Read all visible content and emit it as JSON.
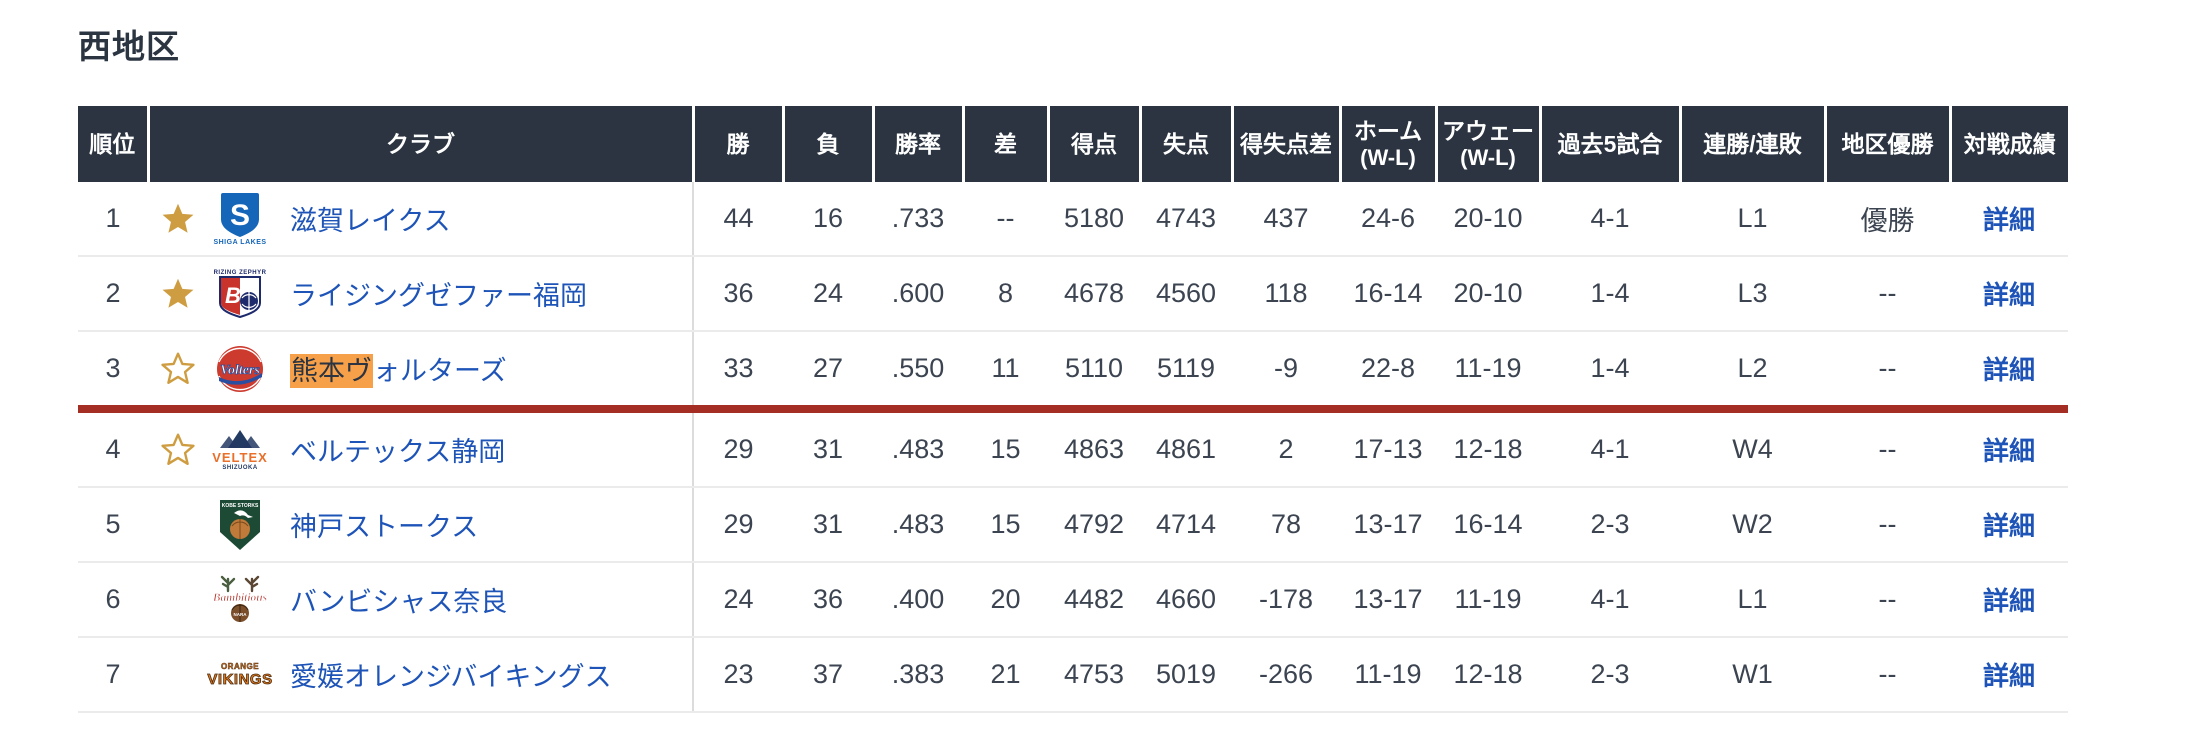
{
  "title": "西地区",
  "colors": {
    "header_bg": "#2b3440",
    "link_blue": "#1e54b7",
    "cutoff_line_red": "#a52e24",
    "search_highlight_orange": "#f6a04a",
    "star_gold": "#cf9d41",
    "body_text": "#3b4450"
  },
  "table": {
    "headers": [
      {
        "key": "rank",
        "label": "順位",
        "sub": ""
      },
      {
        "key": "club",
        "label": "クラブ",
        "sub": ""
      },
      {
        "key": "wins",
        "label": "勝",
        "sub": ""
      },
      {
        "key": "losses",
        "label": "負",
        "sub": ""
      },
      {
        "key": "pct",
        "label": "勝率",
        "sub": ""
      },
      {
        "key": "games-behind",
        "label": "差",
        "sub": ""
      },
      {
        "key": "points-for",
        "label": "得点",
        "sub": ""
      },
      {
        "key": "points-against",
        "label": "失点",
        "sub": ""
      },
      {
        "key": "point-diff",
        "label": "得失点差",
        "sub": ""
      },
      {
        "key": "home",
        "label": "ホーム",
        "sub": "(W-L)"
      },
      {
        "key": "away",
        "label": "アウェー",
        "sub": "(W-L)"
      },
      {
        "key": "last5",
        "label": "過去5試合",
        "sub": ""
      },
      {
        "key": "streak",
        "label": "連勝/連敗",
        "sub": ""
      },
      {
        "key": "district-champion",
        "label": "地区優勝",
        "sub": ""
      },
      {
        "key": "matchup",
        "label": "対戦成績",
        "sub": ""
      }
    ],
    "rows": [
      {
        "rank": "1",
        "star": "filled",
        "logo": "shiga",
        "club_highlight": "",
        "club_rest": "滋賀レイクス",
        "wins": "44",
        "losses": "16",
        "pct": ".733",
        "gb": "--",
        "points_for": "5180",
        "points_against": "4743",
        "point_diff": "437",
        "home": "24-6",
        "away": "20-10",
        "last5": "4-1",
        "streak": "L1",
        "district_champion": "優勝",
        "matchup": "詳細",
        "cutoff_line_below": false
      },
      {
        "rank": "2",
        "star": "filled",
        "logo": "rizing",
        "club_highlight": "",
        "club_rest": "ライジングゼファー福岡",
        "wins": "36",
        "losses": "24",
        "pct": ".600",
        "gb": "8",
        "points_for": "4678",
        "points_against": "4560",
        "point_diff": "118",
        "home": "16-14",
        "away": "20-10",
        "last5": "1-4",
        "streak": "L3",
        "district_champion": "--",
        "matchup": "詳細",
        "cutoff_line_below": false
      },
      {
        "rank": "3",
        "star": "outline",
        "logo": "kumamoto",
        "club_highlight": "熊本ヴ",
        "club_rest": "ォルターズ",
        "wins": "33",
        "losses": "27",
        "pct": ".550",
        "gb": "11",
        "points_for": "5110",
        "points_against": "5119",
        "point_diff": "-9",
        "home": "22-8",
        "away": "11-19",
        "last5": "1-4",
        "streak": "L2",
        "district_champion": "--",
        "matchup": "詳細",
        "cutoff_line_below": true
      },
      {
        "rank": "4",
        "star": "outline",
        "logo": "veltex",
        "club_highlight": "",
        "club_rest": "ベルテックス静岡",
        "wins": "29",
        "losses": "31",
        "pct": ".483",
        "gb": "15",
        "points_for": "4863",
        "points_against": "4861",
        "point_diff": "2",
        "home": "17-13",
        "away": "12-18",
        "last5": "4-1",
        "streak": "W4",
        "district_champion": "--",
        "matchup": "詳細",
        "cutoff_line_below": false
      },
      {
        "rank": "5",
        "star": "none",
        "logo": "kobe",
        "club_highlight": "",
        "club_rest": "神戸ストークス",
        "wins": "29",
        "losses": "31",
        "pct": ".483",
        "gb": "15",
        "points_for": "4792",
        "points_against": "4714",
        "point_diff": "78",
        "home": "13-17",
        "away": "16-14",
        "last5": "2-3",
        "streak": "W2",
        "district_champion": "--",
        "matchup": "詳細",
        "cutoff_line_below": false
      },
      {
        "rank": "6",
        "star": "none",
        "logo": "bambitious",
        "club_highlight": "",
        "club_rest": "バンビシャス奈良",
        "wins": "24",
        "losses": "36",
        "pct": ".400",
        "gb": "20",
        "points_for": "4482",
        "points_against": "4660",
        "point_diff": "-178",
        "home": "13-17",
        "away": "11-19",
        "last5": "4-1",
        "streak": "L1",
        "district_champion": "--",
        "matchup": "詳細",
        "cutoff_line_below": false
      },
      {
        "rank": "7",
        "star": "none",
        "logo": "vikings",
        "club_highlight": "",
        "club_rest": "愛媛オレンジバイキングス",
        "wins": "23",
        "losses": "37",
        "pct": ".383",
        "gb": "21",
        "points_for": "4753",
        "points_against": "5019",
        "point_diff": "-266",
        "home": "11-19",
        "away": "12-18",
        "last5": "2-3",
        "streak": "W1",
        "district_champion": "--",
        "matchup": "詳細",
        "cutoff_line_below": false
      }
    ]
  },
  "logos": {
    "shiga": {
      "name": "shiga-lakes-logo",
      "primary": "#1565b8",
      "caption": "SHIGA LAKES"
    },
    "rizing": {
      "name": "rizing-zephyr-fukuoka-logo",
      "primary": "#c8342b",
      "secondary": "#1d2a6b",
      "caption": "RIZING ZEPHYR"
    },
    "kumamoto": {
      "name": "kumamoto-volters-logo",
      "primary": "#cd3a2e",
      "secondary": "#2a4fa0",
      "caption": "Volters"
    },
    "veltex": {
      "name": "veltex-shizuoka-logo",
      "primary": "#233a63",
      "secondary": "#e8702a",
      "caption": "VELTEX",
      "subcaption": "SHIZUOKA"
    },
    "kobe": {
      "name": "kobe-storks-logo",
      "primary": "#1d4a35",
      "secondary": "#c07a3a",
      "caption": "KOBE STORKS"
    },
    "bambitious": {
      "name": "bambitious-nara-logo",
      "primary": "#b5342c",
      "secondary": "#4a5f3f",
      "caption": "Bambitious",
      "subcaption": "NARA"
    },
    "vikings": {
      "name": "ehime-orange-vikings-logo",
      "primary": "#e07a1f",
      "secondary": "#4a2c12",
      "caption": "ORANGE",
      "subcaption": "VIKINGS"
    }
  }
}
